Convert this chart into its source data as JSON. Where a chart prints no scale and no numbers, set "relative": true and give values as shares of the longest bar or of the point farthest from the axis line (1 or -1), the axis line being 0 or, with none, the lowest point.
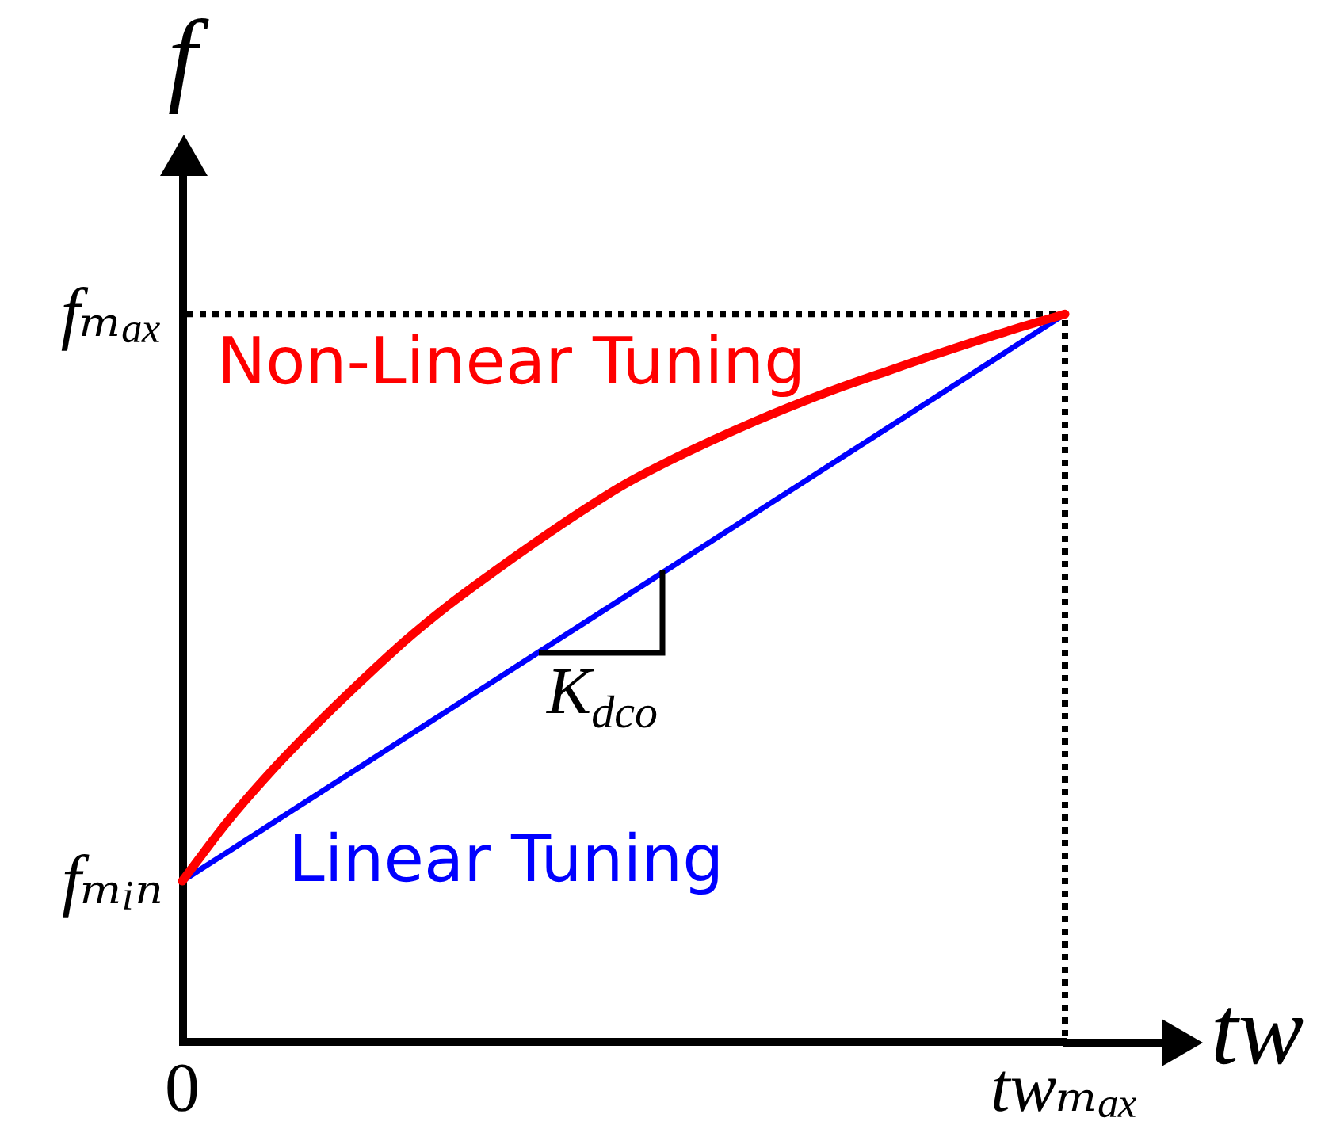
{
  "chart_data": {
    "type": "line",
    "relative": true,
    "xlabel": "tw",
    "ylabel": "f",
    "categories": [
      "0",
      null,
      null,
      null,
      null,
      null,
      null,
      null,
      null,
      null,
      null,
      null,
      null,
      null,
      null,
      null,
      null,
      null,
      null,
      null,
      "twₘₐₓ"
    ],
    "series": [
      {
        "name": "Non-Linear Tuning",
        "color": "#ff0000",
        "values": [
          0.22,
          0.3,
          0.37,
          0.433,
          0.492,
          0.548,
          0.598,
          0.643,
          0.686,
          0.727,
          0.765,
          0.797,
          0.826,
          0.853,
          0.878,
          0.901,
          0.922,
          0.943,
          0.963,
          0.982,
          1
        ]
      },
      {
        "name": "Linear Tuning",
        "color": "#0000ff",
        "values": [
          0.22,
          0.259,
          0.298,
          0.337,
          0.376,
          0.415,
          0.454,
          0.493,
          0.532,
          0.571,
          0.61,
          0.649,
          0.688,
          0.727,
          0.766,
          0.805,
          0.844,
          0.883,
          0.922,
          0.961,
          1
        ]
      }
    ],
    "ref_lines": [
      {
        "axis": "y",
        "value": 1,
        "label": "fₘₐₓ",
        "color": "#000000",
        "line_style": "dotted"
      },
      {
        "axis": "x",
        "value": "twₘₐₓ",
        "color": "#000000",
        "line_style": "dotted"
      }
    ],
    "annotations": [
      "K$_{dco}$",
      {
        "text": "fₘᵢₙ",
        "x": "0",
        "y": 0.22
      }
    ]
  }
}
